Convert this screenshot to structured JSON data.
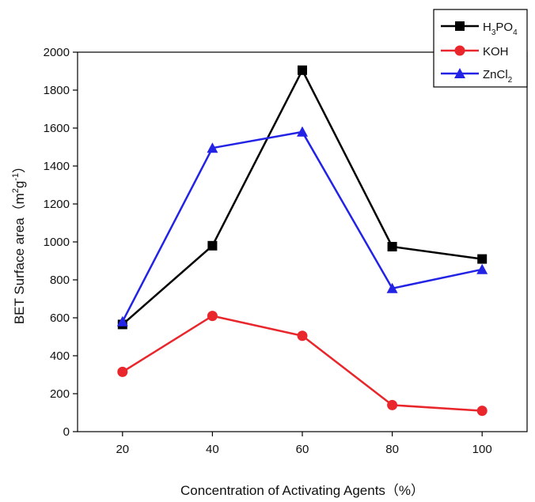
{
  "chart_data": {
    "type": "line",
    "title": "",
    "x": [
      20,
      40,
      60,
      80,
      100
    ],
    "xlabel": "Concentration of Activating Agents（%）",
    "ylabel_main": "BET Surface area（m",
    "ylabel_sup1": "2",
    "ylabel_mid": "g",
    "ylabel_sup2": "-1",
    "ylabel_end": "）",
    "xlim": [
      10,
      110
    ],
    "ylim": [
      0,
      2000
    ],
    "xticks": [
      "20",
      "40",
      "60",
      "80",
      "100"
    ],
    "yticks": [
      "0",
      "200",
      "400",
      "600",
      "800",
      "1000",
      "1200",
      "1400",
      "1600",
      "1800",
      "2000"
    ],
    "grid": false,
    "legend_position": "top-right",
    "series": [
      {
        "name": "H3PO4",
        "legend": {
          "a": "H",
          "sub1": "3",
          "b": "PO",
          "sub2": "4"
        },
        "color": "#000000",
        "marker": "square",
        "values": [
          565,
          980,
          1905,
          975,
          910
        ]
      },
      {
        "name": "KOH",
        "legend": {
          "a": "KOH"
        },
        "color": "#e8262b",
        "marker": "circle",
        "values": [
          315,
          610,
          505,
          140,
          110
        ]
      },
      {
        "name": "ZnCl2",
        "legend": {
          "a": "ZnCl",
          "sub1": "2"
        },
        "color": "#2323e6",
        "marker": "triangle",
        "values": [
          580,
          1495,
          1580,
          755,
          855
        ]
      }
    ]
  }
}
